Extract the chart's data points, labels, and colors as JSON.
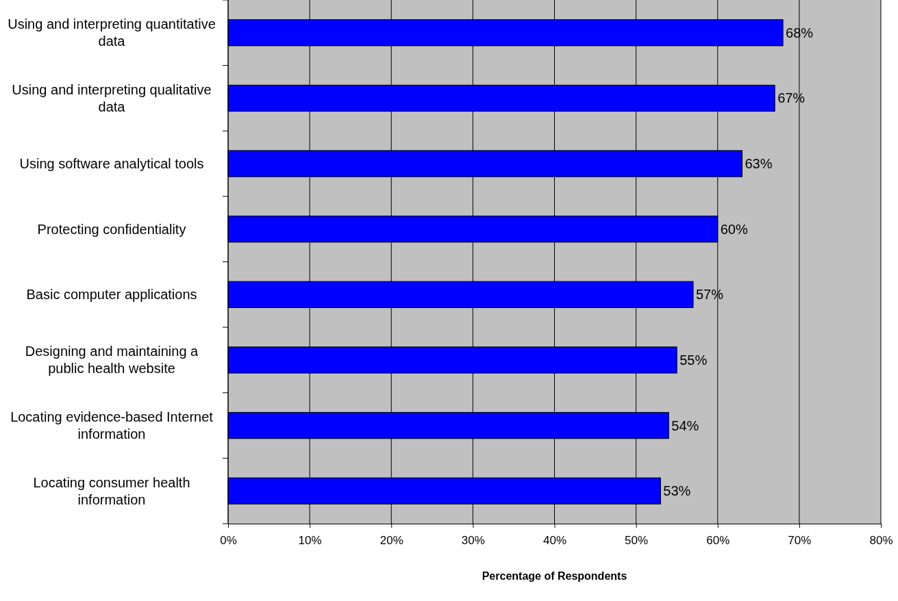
{
  "chart_data": {
    "type": "bar",
    "orientation": "horizontal",
    "xlabel": "Percentage of Respondents",
    "categories": [
      "Using and interpreting quantitative data",
      "Using and interpreting qualitative data",
      "Using software analytical tools",
      "Protecting confidentiality",
      "Basic computer applications",
      "Designing and maintaining a public health website",
      "Locating evidence-based Internet information",
      "Locating consumer health information"
    ],
    "values": [
      68,
      67,
      63,
      60,
      57,
      55,
      54,
      53
    ],
    "value_labels": [
      "68%",
      "67%",
      "63%",
      "60%",
      "57%",
      "55%",
      "54%",
      "53%"
    ],
    "color": "#0000ff",
    "xlim": [
      0,
      80
    ],
    "xticks": [
      {
        "value": 0,
        "label": "0%"
      },
      {
        "value": 10,
        "label": "10%"
      },
      {
        "value": 20,
        "label": "20%"
      },
      {
        "value": 30,
        "label": "30%"
      },
      {
        "value": 40,
        "label": "40%"
      },
      {
        "value": 50,
        "label": "50%"
      },
      {
        "value": 60,
        "label": "60%"
      },
      {
        "value": 70,
        "label": "70%"
      },
      {
        "value": 80,
        "label": "80%"
      }
    ],
    "grid": "x"
  }
}
